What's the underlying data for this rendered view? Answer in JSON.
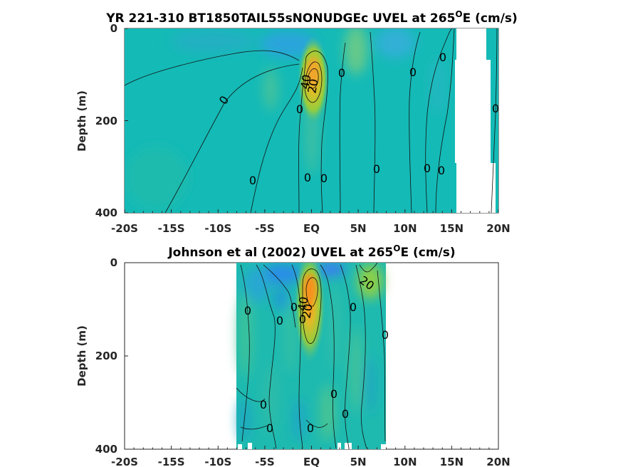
{
  "chart_data": [
    {
      "type": "heatmap",
      "subtype": "filled-contour",
      "title_main": "YR 221-310 BT1850TAIL55sNONUDGEc UVEL at 265",
      "title_sup": "O",
      "title_end": "E (cm/s)",
      "xlabel": "",
      "ylabel": "Depth (m)",
      "xlim": [
        -20,
        20
      ],
      "ylim": [
        0,
        400
      ],
      "y_reversed": true,
      "x_ticks": [
        -20,
        -15,
        -10,
        -5,
        0,
        5,
        10,
        15,
        20
      ],
      "x_tick_labels": [
        "-20S",
        "-15S",
        "-10S",
        "-5S",
        "EQ",
        "5N",
        "10N",
        "15N",
        "20N"
      ],
      "y_ticks": [
        0,
        200,
        400
      ],
      "y_tick_labels": [
        "0",
        "200",
        "400"
      ],
      "data_x_range": [
        -20,
        20
      ],
      "contour_labels": [
        {
          "text": "0",
          "x": -9,
          "y": 155
        },
        {
          "text": "0",
          "x": -6,
          "y": 330
        },
        {
          "text": "40",
          "x": -0.5,
          "y": 112
        },
        {
          "text": "20",
          "x": 0.4,
          "y": 127
        },
        {
          "text": "0",
          "x": -1,
          "y": 175
        },
        {
          "text": "0",
          "x": -0.2,
          "y": 320
        },
        {
          "text": "0",
          "x": 1.5,
          "y": 322
        },
        {
          "text": "0",
          "x": 3.3,
          "y": 95
        },
        {
          "text": "0",
          "x": 7,
          "y": 300
        },
        {
          "text": "0",
          "x": 11,
          "y": 95
        },
        {
          "text": "0",
          "x": 14.5,
          "y": 63
        },
        {
          "text": "0",
          "x": 12.5,
          "y": 300
        },
        {
          "text": "0",
          "x": 14,
          "y": 305
        },
        {
          "text": "0",
          "x": 20,
          "y": 172
        }
      ],
      "features": [
        {
          "name": "equatorial-undercurrent-core",
          "x": 0.4,
          "y": 100,
          "peak_cm_s": 45
        },
        {
          "name": "surface-westward-flow",
          "x": 0,
          "y": 10,
          "value_cm_s": -20
        }
      ]
    },
    {
      "type": "heatmap",
      "subtype": "filled-contour",
      "title_main": "Johnson et al (2002) UVEL at 265",
      "title_sup": "O",
      "title_end": "E (cm/s)",
      "xlabel": "",
      "ylabel": "Depth (m)",
      "xlim": [
        -20,
        20
      ],
      "ylim": [
        0,
        400
      ],
      "y_reversed": true,
      "x_ticks": [
        -20,
        -15,
        -10,
        -5,
        0,
        5,
        10,
        15,
        20
      ],
      "x_tick_labels": [
        "-20S",
        "-15S",
        "-10S",
        "-5S",
        "EQ",
        "5N",
        "10N",
        "15N",
        "20N"
      ],
      "y_ticks": [
        0,
        200,
        400
      ],
      "y_tick_labels": [
        "0",
        "200",
        "400"
      ],
      "data_x_range": [
        -8,
        8
      ],
      "contour_labels": [
        {
          "text": "0",
          "x": -6.5,
          "y": 105
        },
        {
          "text": "0",
          "x": -3,
          "y": 125
        },
        {
          "text": "0",
          "x": -1.5,
          "y": 95
        },
        {
          "text": "40",
          "x": -0.4,
          "y": 100
        },
        {
          "text": "0",
          "x": -0.8,
          "y": 120
        },
        {
          "text": "20",
          "x": 0,
          "y": 110
        },
        {
          "text": "20",
          "x": 6,
          "y": 45
        },
        {
          "text": "0",
          "x": 4.5,
          "y": 95
        },
        {
          "text": "0",
          "x": 8,
          "y": 155
        },
        {
          "text": "0",
          "x": 2.5,
          "y": 280
        },
        {
          "text": "0",
          "x": 3.7,
          "y": 325
        },
        {
          "text": "0",
          "x": -7.3,
          "y": 305
        },
        {
          "text": "0",
          "x": -4.5,
          "y": 355
        },
        {
          "text": "0",
          "x": 0,
          "y": 355
        }
      ],
      "features": [
        {
          "name": "equatorial-undercurrent-core",
          "x": 0,
          "y": 70,
          "peak_cm_s": 50
        },
        {
          "name": "north-jet",
          "x": 6,
          "y": 35,
          "value_cm_s": 25
        }
      ]
    }
  ]
}
